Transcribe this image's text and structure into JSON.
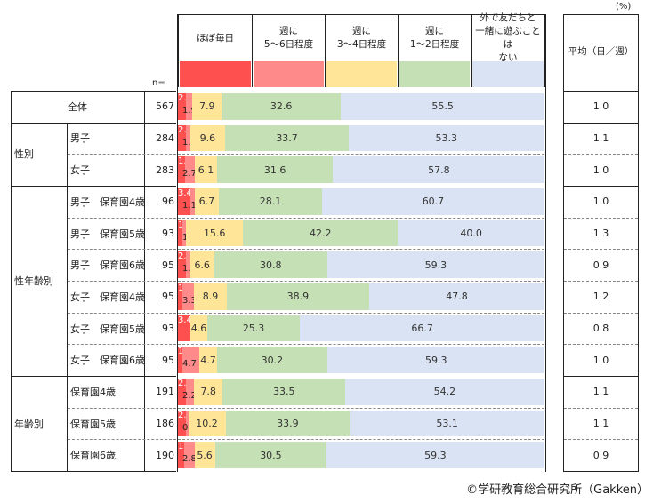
{
  "unit_label": "(%)",
  "n_label": "n=",
  "avg_header": "平均（日／週）",
  "credit": "©学研教育総合研究所（Gakken）",
  "chart_data": {
    "type": "bar",
    "orientation": "horizontal-stacked-100",
    "series": [
      {
        "name": "ほぼ毎日",
        "color": "#ff5050"
      },
      {
        "name": "週に\n5～6日程度",
        "color": "#ff8a8a"
      },
      {
        "name": "週に\n3～4日程度",
        "color": "#ffe598"
      },
      {
        "name": "週に\n1～2日程度",
        "color": "#c5e0b4"
      },
      {
        "name": "外で友だちと\n一緒に遊ぶことは\nない",
        "color": "#dae3f3"
      }
    ],
    "groups": [
      {
        "label": "",
        "rows": [
          {
            "label": "全体",
            "n": 567,
            "values": [
              2.1,
              1.9,
              7.9,
              32.6,
              55.5
            ],
            "avg": "1.0"
          }
        ]
      },
      {
        "label": "性別",
        "rows": [
          {
            "label": "男子",
            "n": 284,
            "values": [
              2.2,
              1.1,
              9.6,
              33.7,
              53.3
            ],
            "avg": "1.1"
          },
          {
            "label": "女子",
            "n": 283,
            "values": [
              1.9,
              2.7,
              6.1,
              31.6,
              57.8
            ],
            "avg": "1.0"
          }
        ]
      },
      {
        "label": "性年齢別",
        "rows": [
          {
            "label": "男子　保育園4歳",
            "n": 96,
            "values": [
              3.4,
              1.1,
              6.7,
              28.1,
              60.7
            ],
            "avg": "1.0"
          },
          {
            "label": "男子　保育園5歳",
            "n": 93,
            "values": [
              1.1,
              1.1,
              15.6,
              42.2,
              40.0
            ],
            "avg": "1.3"
          },
          {
            "label": "男子　保育園6歳",
            "n": 95,
            "values": [
              2.2,
              1.1,
              6.6,
              30.8,
              59.3
            ],
            "avg": "0.9"
          },
          {
            "label": "女子　保育園4歳",
            "n": 95,
            "values": [
              1.1,
              3.3,
              8.9,
              38.9,
              47.8
            ],
            "avg": "1.2"
          },
          {
            "label": "女子　保育園5歳",
            "n": 93,
            "values": [
              3.4,
              0,
              4.6,
              25.3,
              66.7
            ],
            "avg": "0.8"
          },
          {
            "label": "女子　保育園6歳",
            "n": 95,
            "values": [
              1.2,
              4.7,
              4.7,
              30.2,
              59.3
            ],
            "avg": "1.0"
          }
        ]
      },
      {
        "label": "年齢別",
        "rows": [
          {
            "label": "保育園4歳",
            "n": 191,
            "values": [
              2.2,
              2.2,
              7.8,
              33.5,
              54.2
            ],
            "avg": "1.1"
          },
          {
            "label": "保育園5歳",
            "n": 186,
            "values": [
              2.2,
              0.6,
              10.2,
              33.9,
              53.1
            ],
            "avg": "1.1"
          },
          {
            "label": "保育園6歳",
            "n": 190,
            "values": [
              1.7,
              2.8,
              5.6,
              30.5,
              59.3
            ],
            "avg": "0.9"
          }
        ]
      }
    ]
  }
}
